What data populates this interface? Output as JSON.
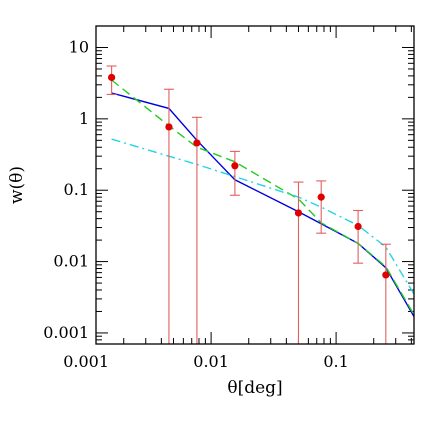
{
  "chart_data": {
    "type": "line",
    "xlabel": "θ[deg]",
    "ylabel": "w(θ)",
    "xscale": "log",
    "yscale": "log",
    "xlim": [
      0.0012,
      0.42
    ],
    "ylim": [
      0.0007,
      20
    ],
    "xticks": [
      0.001,
      0.01,
      0.1
    ],
    "xtick_labels": [
      "0.001",
      "0.01",
      "0.1"
    ],
    "yticks": [
      0.001,
      0.01,
      0.1,
      1,
      10
    ],
    "ytick_labels": [
      "0.001",
      "0.01",
      "0.1",
      "1",
      "10"
    ],
    "grid": false,
    "points": {
      "color": "#e00000",
      "errorbar_color": "#e06060",
      "x": [
        0.0016,
        0.0046,
        0.0077,
        0.0155,
        0.05,
        0.076,
        0.15,
        0.25
      ],
      "y": [
        3.8,
        0.77,
        0.46,
        0.22,
        0.048,
        0.08,
        0.031,
        0.0065
      ],
      "yerr_low": [
        2.2,
        0.0001,
        0.0001,
        0.085,
        0.0001,
        0.025,
        0.0095,
        0.0001
      ],
      "yerr_high": [
        5.5,
        2.6,
        1.05,
        0.35,
        0.13,
        0.135,
        0.052,
        0.0175
      ]
    },
    "series": [
      {
        "color": "#0000dd",
        "style": "solid",
        "x": [
          0.0016,
          0.0046,
          0.0077,
          0.0155,
          0.05,
          0.076,
          0.15,
          0.25,
          0.42
        ],
        "y": [
          2.3,
          1.4,
          0.5,
          0.14,
          0.05,
          0.034,
          0.018,
          0.0082,
          0.0017
        ]
      },
      {
        "color": "#22cc22",
        "style": "dashed",
        "x": [
          0.0016,
          0.0046,
          0.0077,
          0.0155,
          0.05,
          0.076,
          0.15,
          0.25,
          0.42
        ],
        "y": [
          3.5,
          0.8,
          0.4,
          0.25,
          0.075,
          0.035,
          0.018,
          0.0085,
          0.0018
        ]
      },
      {
        "color": "#22d5e5",
        "style": "dashdot",
        "x": [
          0.0016,
          0.0046,
          0.0077,
          0.0155,
          0.05,
          0.076,
          0.15,
          0.25,
          0.42
        ],
        "y": [
          0.52,
          0.3,
          0.23,
          0.155,
          0.08,
          0.058,
          0.032,
          0.016,
          0.0035
        ]
      }
    ]
  }
}
